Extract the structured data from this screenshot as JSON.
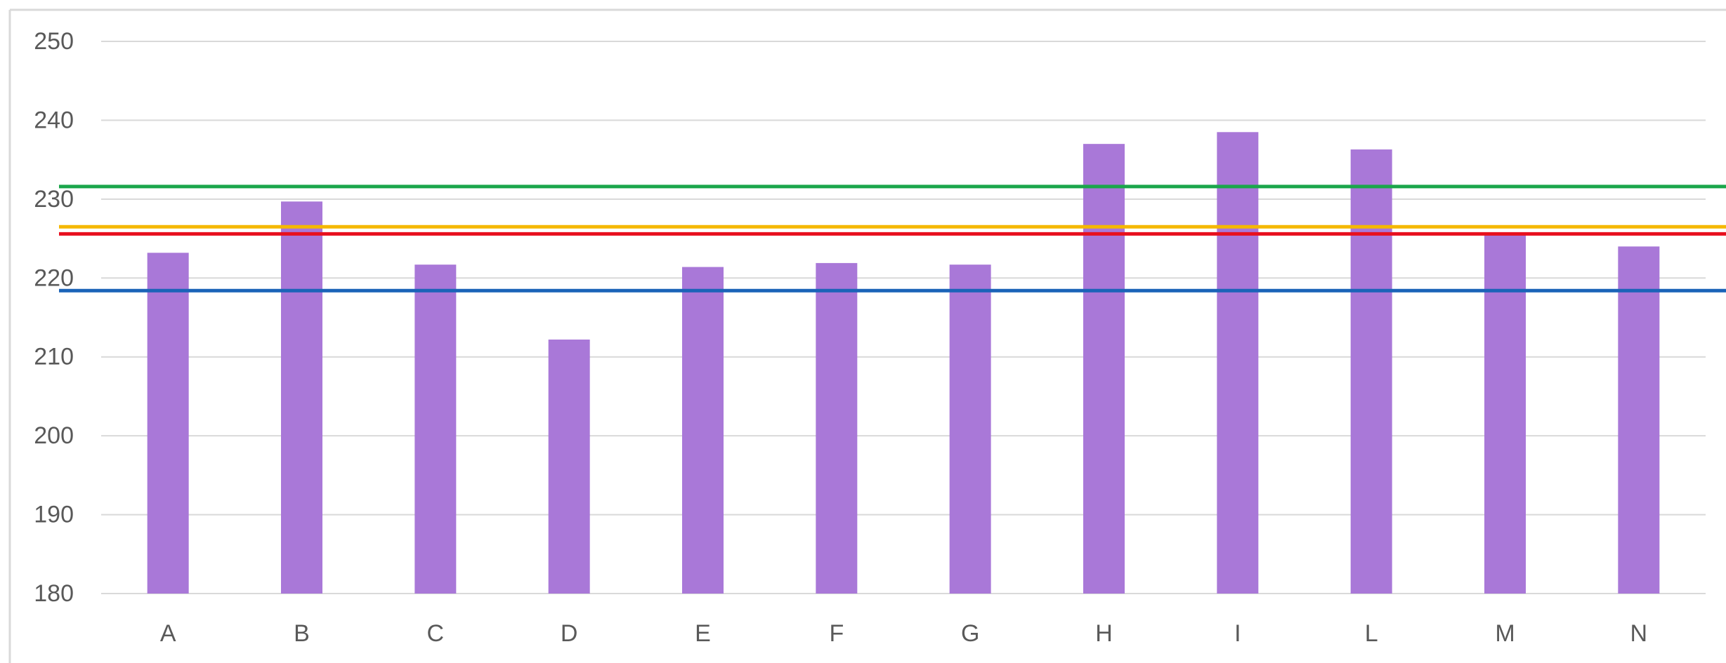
{
  "chart_data": {
    "type": "bar",
    "categories": [
      "A",
      "B",
      "C",
      "D",
      "E",
      "F",
      "G",
      "H",
      "I",
      "L",
      "M",
      "N"
    ],
    "values": [
      223.2,
      229.7,
      221.7,
      212.2,
      221.4,
      221.9,
      221.7,
      237.0,
      238.5,
      236.3,
      225.8,
      224.0
    ],
    "bar_color": "#a978d8",
    "ylim": [
      180,
      250
    ],
    "yticks": [
      180,
      190,
      200,
      210,
      220,
      230,
      240,
      250
    ],
    "grid": true,
    "grid_color": "#d9d9d9",
    "title": "",
    "xlabel": "",
    "ylabel": "",
    "reference_lines": [
      {
        "value": 231.6,
        "color": "#1aa64b"
      },
      {
        "value": 226.5,
        "color": "#f5b800"
      },
      {
        "value": 225.6,
        "color": "#e8101e"
      },
      {
        "value": 218.4,
        "color": "#1a63b8"
      }
    ]
  }
}
